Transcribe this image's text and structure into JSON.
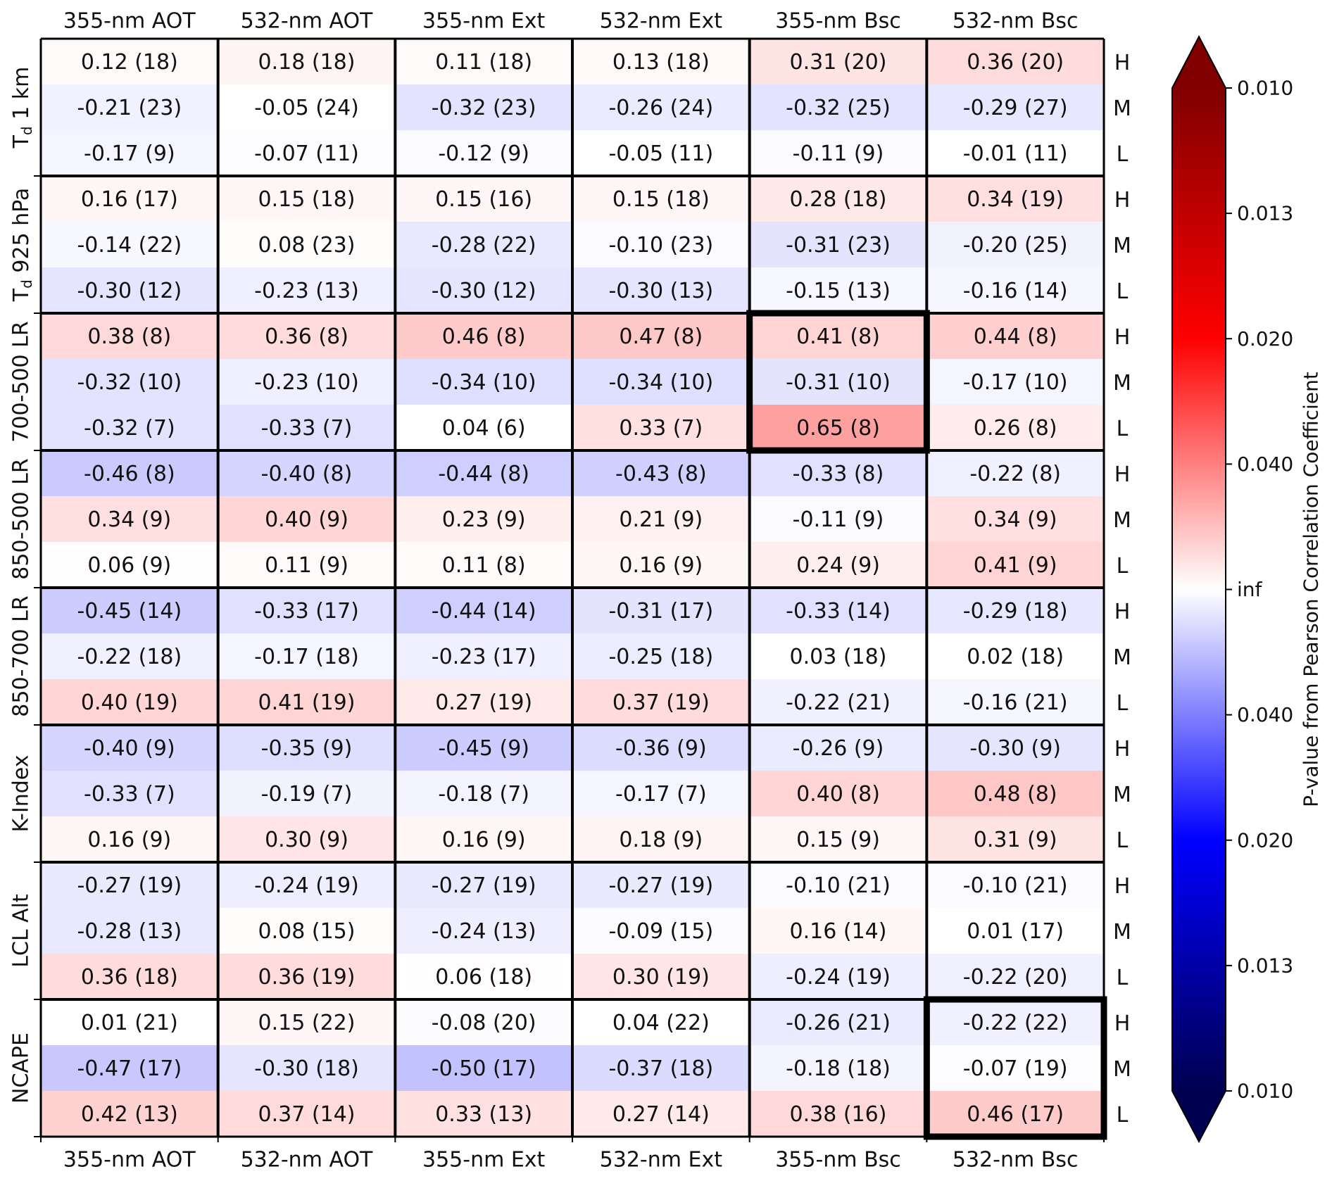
{
  "chart_data": {
    "type": "heatmap",
    "columns": [
      "355-nm AOT",
      "532-nm AOT",
      "355-nm Ext",
      "532-nm Ext",
      "355-nm Bsc",
      "532-nm Bsc"
    ],
    "row_levels": [
      "H",
      "M",
      "L"
    ],
    "groups": [
      {
        "label": "T_d 1 km",
        "label_main": "T",
        "label_sub": "d",
        "label_rest": " 1 km",
        "cells": [
          [
            "0.12 (18)",
            "0.18 (18)",
            "0.11 (18)",
            "0.13 (18)",
            "0.31 (20)",
            "0.36 (20)"
          ],
          [
            "-0.21 (23)",
            "-0.05 (24)",
            "-0.32 (23)",
            "-0.26 (24)",
            "-0.32 (25)",
            "-0.29 (27)"
          ],
          [
            "-0.17 (9)",
            "-0.07 (11)",
            "-0.12 (9)",
            "-0.05 (11)",
            "-0.11 (9)",
            "-0.01 (11)"
          ]
        ]
      },
      {
        "label": "T_d 925 hPa",
        "label_main": "T",
        "label_sub": "d",
        "label_rest": " 925 hPa",
        "cells": [
          [
            "0.16 (17)",
            "0.15 (18)",
            "0.15 (16)",
            "0.15 (18)",
            "0.28 (18)",
            "0.34 (19)"
          ],
          [
            "-0.14 (22)",
            "0.08 (23)",
            "-0.28 (22)",
            "-0.10 (23)",
            "-0.31 (23)",
            "-0.20 (25)"
          ],
          [
            "-0.30 (12)",
            "-0.23 (13)",
            "-0.30 (12)",
            "-0.30 (13)",
            "-0.15 (13)",
            "-0.16 (14)"
          ]
        ]
      },
      {
        "label": "700-500 LR",
        "cells": [
          [
            "0.38 (8)",
            "0.36 (8)",
            "0.46 (8)",
            "0.47 (8)",
            "0.41 (8)",
            "0.44 (8)"
          ],
          [
            "-0.32 (10)",
            "-0.23 (10)",
            "-0.34 (10)",
            "-0.34 (10)",
            "-0.31 (10)",
            "-0.17 (10)"
          ],
          [
            "-0.32 (7)",
            "-0.33 (7)",
            "0.04 (6)",
            "0.33 (7)",
            "0.65 (8)",
            "0.26 (8)"
          ]
        ]
      },
      {
        "label": "850-500 LR",
        "cells": [
          [
            "-0.46 (8)",
            "-0.40 (8)",
            "-0.44 (8)",
            "-0.43 (8)",
            "-0.33 (8)",
            "-0.22 (8)"
          ],
          [
            "0.34 (9)",
            "0.40 (9)",
            "0.23 (9)",
            "0.21 (9)",
            "-0.11 (9)",
            "0.34 (9)"
          ],
          [
            "0.06 (9)",
            "0.11 (9)",
            "0.11 (8)",
            "0.16 (9)",
            "0.24 (9)",
            "0.41 (9)"
          ]
        ]
      },
      {
        "label": "850-700 LR",
        "cells": [
          [
            "-0.45 (14)",
            "-0.33 (17)",
            "-0.44 (14)",
            "-0.31 (17)",
            "-0.33 (14)",
            "-0.29 (18)"
          ],
          [
            "-0.22 (18)",
            "-0.17 (18)",
            "-0.23 (17)",
            "-0.25 (18)",
            "0.03 (18)",
            "0.02 (18)"
          ],
          [
            "0.40 (19)",
            "0.41 (19)",
            "0.27 (19)",
            "0.37 (19)",
            "-0.22 (21)",
            "-0.16 (21)"
          ]
        ]
      },
      {
        "label": "K-Index",
        "cells": [
          [
            "-0.40 (9)",
            "-0.35 (9)",
            "-0.45 (9)",
            "-0.36 (9)",
            "-0.26 (9)",
            "-0.30 (9)"
          ],
          [
            "-0.33 (7)",
            "-0.19 (7)",
            "-0.18 (7)",
            "-0.17 (7)",
            "0.40 (8)",
            "0.48 (8)"
          ],
          [
            "0.16 (9)",
            "0.30 (9)",
            "0.16 (9)",
            "0.18 (9)",
            "0.15 (9)",
            "0.31 (9)"
          ]
        ]
      },
      {
        "label": "LCL Alt",
        "cells": [
          [
            "-0.27 (19)",
            "-0.24 (19)",
            "-0.27 (19)",
            "-0.27 (19)",
            "-0.10 (21)",
            "-0.10 (21)"
          ],
          [
            "-0.28 (13)",
            "0.08 (15)",
            "-0.24 (13)",
            "-0.09 (15)",
            "0.16 (14)",
            "0.01 (17)"
          ],
          [
            "0.36 (18)",
            "0.36 (19)",
            "0.06 (18)",
            "0.30 (19)",
            "-0.24 (19)",
            "-0.22 (20)"
          ]
        ]
      },
      {
        "label": "NCAPE",
        "cells": [
          [
            "0.01 (21)",
            "0.15 (22)",
            "-0.08 (20)",
            "0.04 (22)",
            "-0.26 (21)",
            "-0.22 (22)"
          ],
          [
            "-0.47 (17)",
            "-0.30 (18)",
            "-0.50 (17)",
            "-0.37 (18)",
            "-0.18 (18)",
            "-0.07 (19)"
          ],
          [
            "0.42 (13)",
            "0.37 (14)",
            "0.33 (13)",
            "0.27 (14)",
            "0.38 (16)",
            "0.46 (17)"
          ]
        ]
      }
    ],
    "highlighted_blocks": [
      {
        "group": "700-500 LR",
        "column": "355-nm Bsc"
      },
      {
        "group": "NCAPE",
        "column": "532-nm Bsc"
      }
    ],
    "colorbar": {
      "label": "P-value from Pearson Correlation Coefficient",
      "ticks": [
        "0.010",
        "0.013",
        "0.020",
        "0.040",
        "inf",
        "0.040",
        "0.020",
        "0.013",
        "0.010"
      ],
      "extend": "both",
      "colormap": "seismic",
      "colors": {
        "high": "#800000",
        "mid": "#ffffff",
        "low": "#000050"
      }
    }
  }
}
